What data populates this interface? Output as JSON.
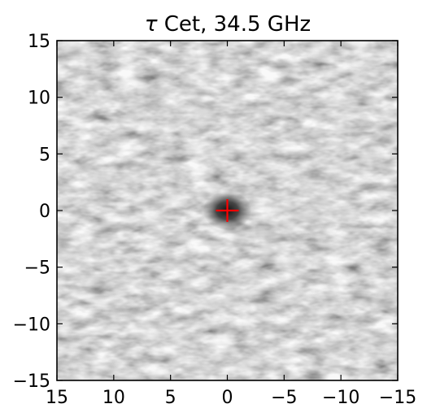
{
  "chart_data": {
    "type": "heatmap",
    "title_symbol": "τ",
    "title_text": " Cet, 34.5 GHz",
    "xlabel": "",
    "ylabel": "",
    "xlim": [
      15,
      -15
    ],
    "ylim": [
      -15,
      15
    ],
    "x_inverted": true,
    "x_ticks": [
      15,
      10,
      5,
      0,
      -5,
      -10,
      -15
    ],
    "x_tick_labels": [
      "15",
      "10",
      "5",
      "0",
      "−5",
      "−10",
      "−15"
    ],
    "y_ticks": [
      15,
      10,
      5,
      0,
      -5,
      -10,
      -15
    ],
    "y_tick_labels": [
      "15",
      "10",
      "5",
      "0",
      "−5",
      "−10",
      "−15"
    ],
    "colormap": "gray",
    "grid": false,
    "source": {
      "x": 0,
      "y": 0,
      "description": "dark compact emission at map center"
    },
    "marker": {
      "type": "cross",
      "x": 0,
      "y": 0,
      "color": "#ff0000"
    }
  }
}
